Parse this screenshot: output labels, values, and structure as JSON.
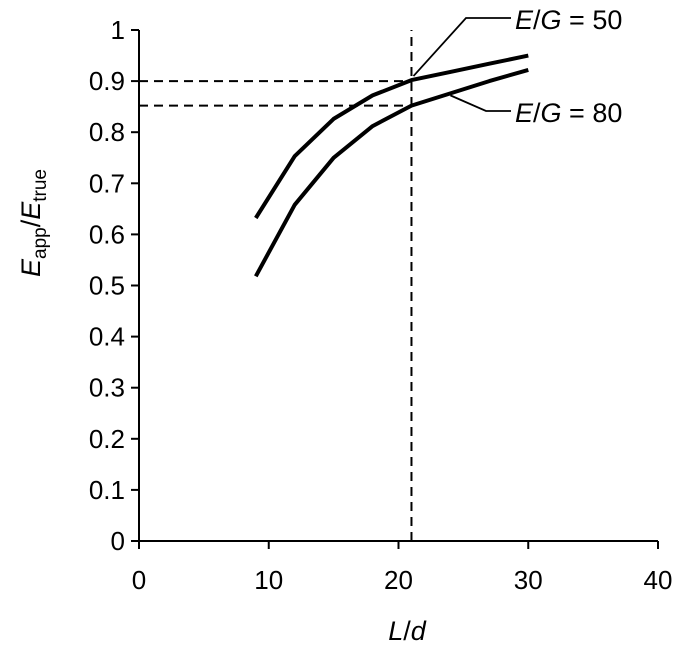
{
  "chart_data": {
    "type": "line",
    "xlim": [
      0,
      40
    ],
    "ylim": [
      0,
      1
    ],
    "x_ticks": [
      0,
      10,
      20,
      30,
      40
    ],
    "y_ticks": [
      0,
      0.1,
      0.2,
      0.3,
      0.4,
      0.5,
      0.6,
      0.7,
      0.8,
      0.9,
      1
    ],
    "x_tick_labels": [
      "0",
      "10",
      "20",
      "30",
      "40"
    ],
    "y_tick_labels": [
      "0",
      "0.1",
      "0.2",
      "0.3",
      "0.4",
      "0.5",
      "0.6",
      "0.7",
      "0.8",
      "0.9",
      "1"
    ],
    "xlabel": {
      "main": "L",
      "sep": "/",
      "main2": "d"
    },
    "ylabel": {
      "main": "E",
      "sub": "app",
      "sep": "/",
      "main2": "E",
      "sub2": "true"
    },
    "grid": false,
    "legend": "none",
    "series": [
      {
        "name": "E/G = 50",
        "label": {
          "a": "E",
          "sep": "/",
          "b": "G",
          "eq": " = 50"
        },
        "x": [
          9,
          12,
          15,
          18,
          21,
          24,
          27,
          30
        ],
        "y": [
          0.632,
          0.753,
          0.826,
          0.872,
          0.902,
          0.918,
          0.934,
          0.95
        ]
      },
      {
        "name": "E/G = 80",
        "label": {
          "a": "E",
          "sep": "/",
          "b": "G",
          "eq": " = 80"
        },
        "x": [
          9,
          12,
          15,
          18,
          21,
          24,
          27,
          30
        ],
        "y": [
          0.518,
          0.658,
          0.75,
          0.812,
          0.852,
          0.876,
          0.9,
          0.922
        ]
      }
    ],
    "reference_lines": [
      {
        "orientation": "horizontal",
        "y": 0.9,
        "x_from": 0,
        "x_to": 21
      },
      {
        "orientation": "horizontal",
        "y": 0.852,
        "x_from": 0,
        "x_to": 21
      },
      {
        "orientation": "vertical",
        "x": 21,
        "y_from": 0,
        "y_to": 1
      }
    ]
  }
}
